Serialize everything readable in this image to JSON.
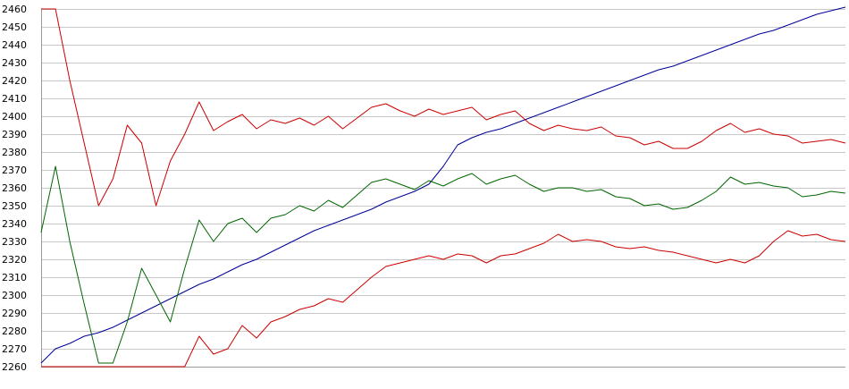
{
  "chart_data": {
    "type": "line",
    "title": "",
    "xlabel": "",
    "ylabel": "",
    "ylim": [
      2260,
      2460
    ],
    "yticks": [
      2260,
      2270,
      2280,
      2290,
      2300,
      2310,
      2320,
      2330,
      2340,
      2350,
      2360,
      2370,
      2380,
      2390,
      2400,
      2410,
      2420,
      2430,
      2440,
      2450,
      2460
    ],
    "grid": true,
    "legend": "none",
    "x": [
      0,
      4,
      8,
      12,
      16,
      20,
      24,
      28,
      32,
      36,
      40,
      44,
      48,
      52,
      56,
      60,
      64,
      68,
      72,
      76,
      80,
      84,
      88,
      92,
      96,
      100,
      104,
      108,
      112,
      116,
      120,
      124,
      128,
      132,
      136,
      140,
      144,
      148,
      152,
      156,
      160,
      164,
      168,
      172,
      176,
      180,
      184,
      188,
      192,
      196,
      200,
      204,
      208,
      212,
      216,
      220,
      224
    ],
    "series": [
      {
        "color": "#000099",
        "values": [
          2262,
          2270,
          2273,
          2277,
          2279,
          2282,
          2286,
          2290,
          2294,
          2298,
          2302,
          2306,
          2309,
          2313,
          2317,
          2320,
          2324,
          2328,
          2332,
          2336,
          2339,
          2342,
          2345,
          2348,
          2352,
          2355,
          2358,
          2362,
          2372,
          2384,
          2388,
          2391,
          2393,
          2396,
          2399,
          2402,
          2405,
          2408,
          2411,
          2414,
          2417,
          2420,
          2423,
          2426,
          2428,
          2431,
          2434,
          2437,
          2440,
          2443,
          2446,
          2448,
          2451,
          2454,
          2457,
          2459,
          2461
        ]
      },
      {
        "color": "#cc0000",
        "values": [
          2460,
          2460,
          2420,
          2385,
          2350,
          2365,
          2395,
          2385,
          2350,
          2375,
          2390,
          2408,
          2392,
          2397,
          2401,
          2393,
          2398,
          2396,
          2399,
          2395,
          2400,
          2393,
          2399,
          2405,
          2407,
          2403,
          2400,
          2404,
          2401,
          2403,
          2405,
          2398,
          2401,
          2403,
          2396,
          2392,
          2395,
          2393,
          2392,
          2394,
          2389,
          2388,
          2384,
          2386,
          2382,
          2382,
          2386,
          2392,
          2396,
          2391,
          2393,
          2390,
          2389,
          2385,
          2386,
          2387,
          2385
        ]
      },
      {
        "color": "#006600",
        "values": [
          2335,
          2372,
          2330,
          2295,
          2262,
          2262,
          2285,
          2315,
          2300,
          2285,
          2315,
          2342,
          2330,
          2340,
          2343,
          2335,
          2343,
          2345,
          2350,
          2347,
          2353,
          2349,
          2356,
          2363,
          2365,
          2362,
          2359,
          2364,
          2361,
          2365,
          2368,
          2362,
          2365,
          2367,
          2362,
          2358,
          2360,
          2360,
          2358,
          2359,
          2355,
          2354,
          2350,
          2351,
          2348,
          2349,
          2353,
          2358,
          2366,
          2362,
          2363,
          2361,
          2360,
          2355,
          2356,
          2358,
          2357
        ]
      },
      {
        "color": "#cc0000",
        "values": [
          2260,
          2260,
          2260,
          2260,
          2260,
          2260,
          2260,
          2260,
          2260,
          2260,
          2260,
          2277,
          2267,
          2270,
          2283,
          2276,
          2285,
          2288,
          2292,
          2294,
          2298,
          2296,
          2303,
          2310,
          2316,
          2318,
          2320,
          2322,
          2320,
          2323,
          2322,
          2318,
          2322,
          2323,
          2326,
          2329,
          2334,
          2330,
          2331,
          2330,
          2327,
          2326,
          2327,
          2325,
          2324,
          2322,
          2320,
          2318,
          2320,
          2318,
          2322,
          2330,
          2336,
          2333,
          2334,
          2331,
          2330
        ]
      }
    ]
  }
}
